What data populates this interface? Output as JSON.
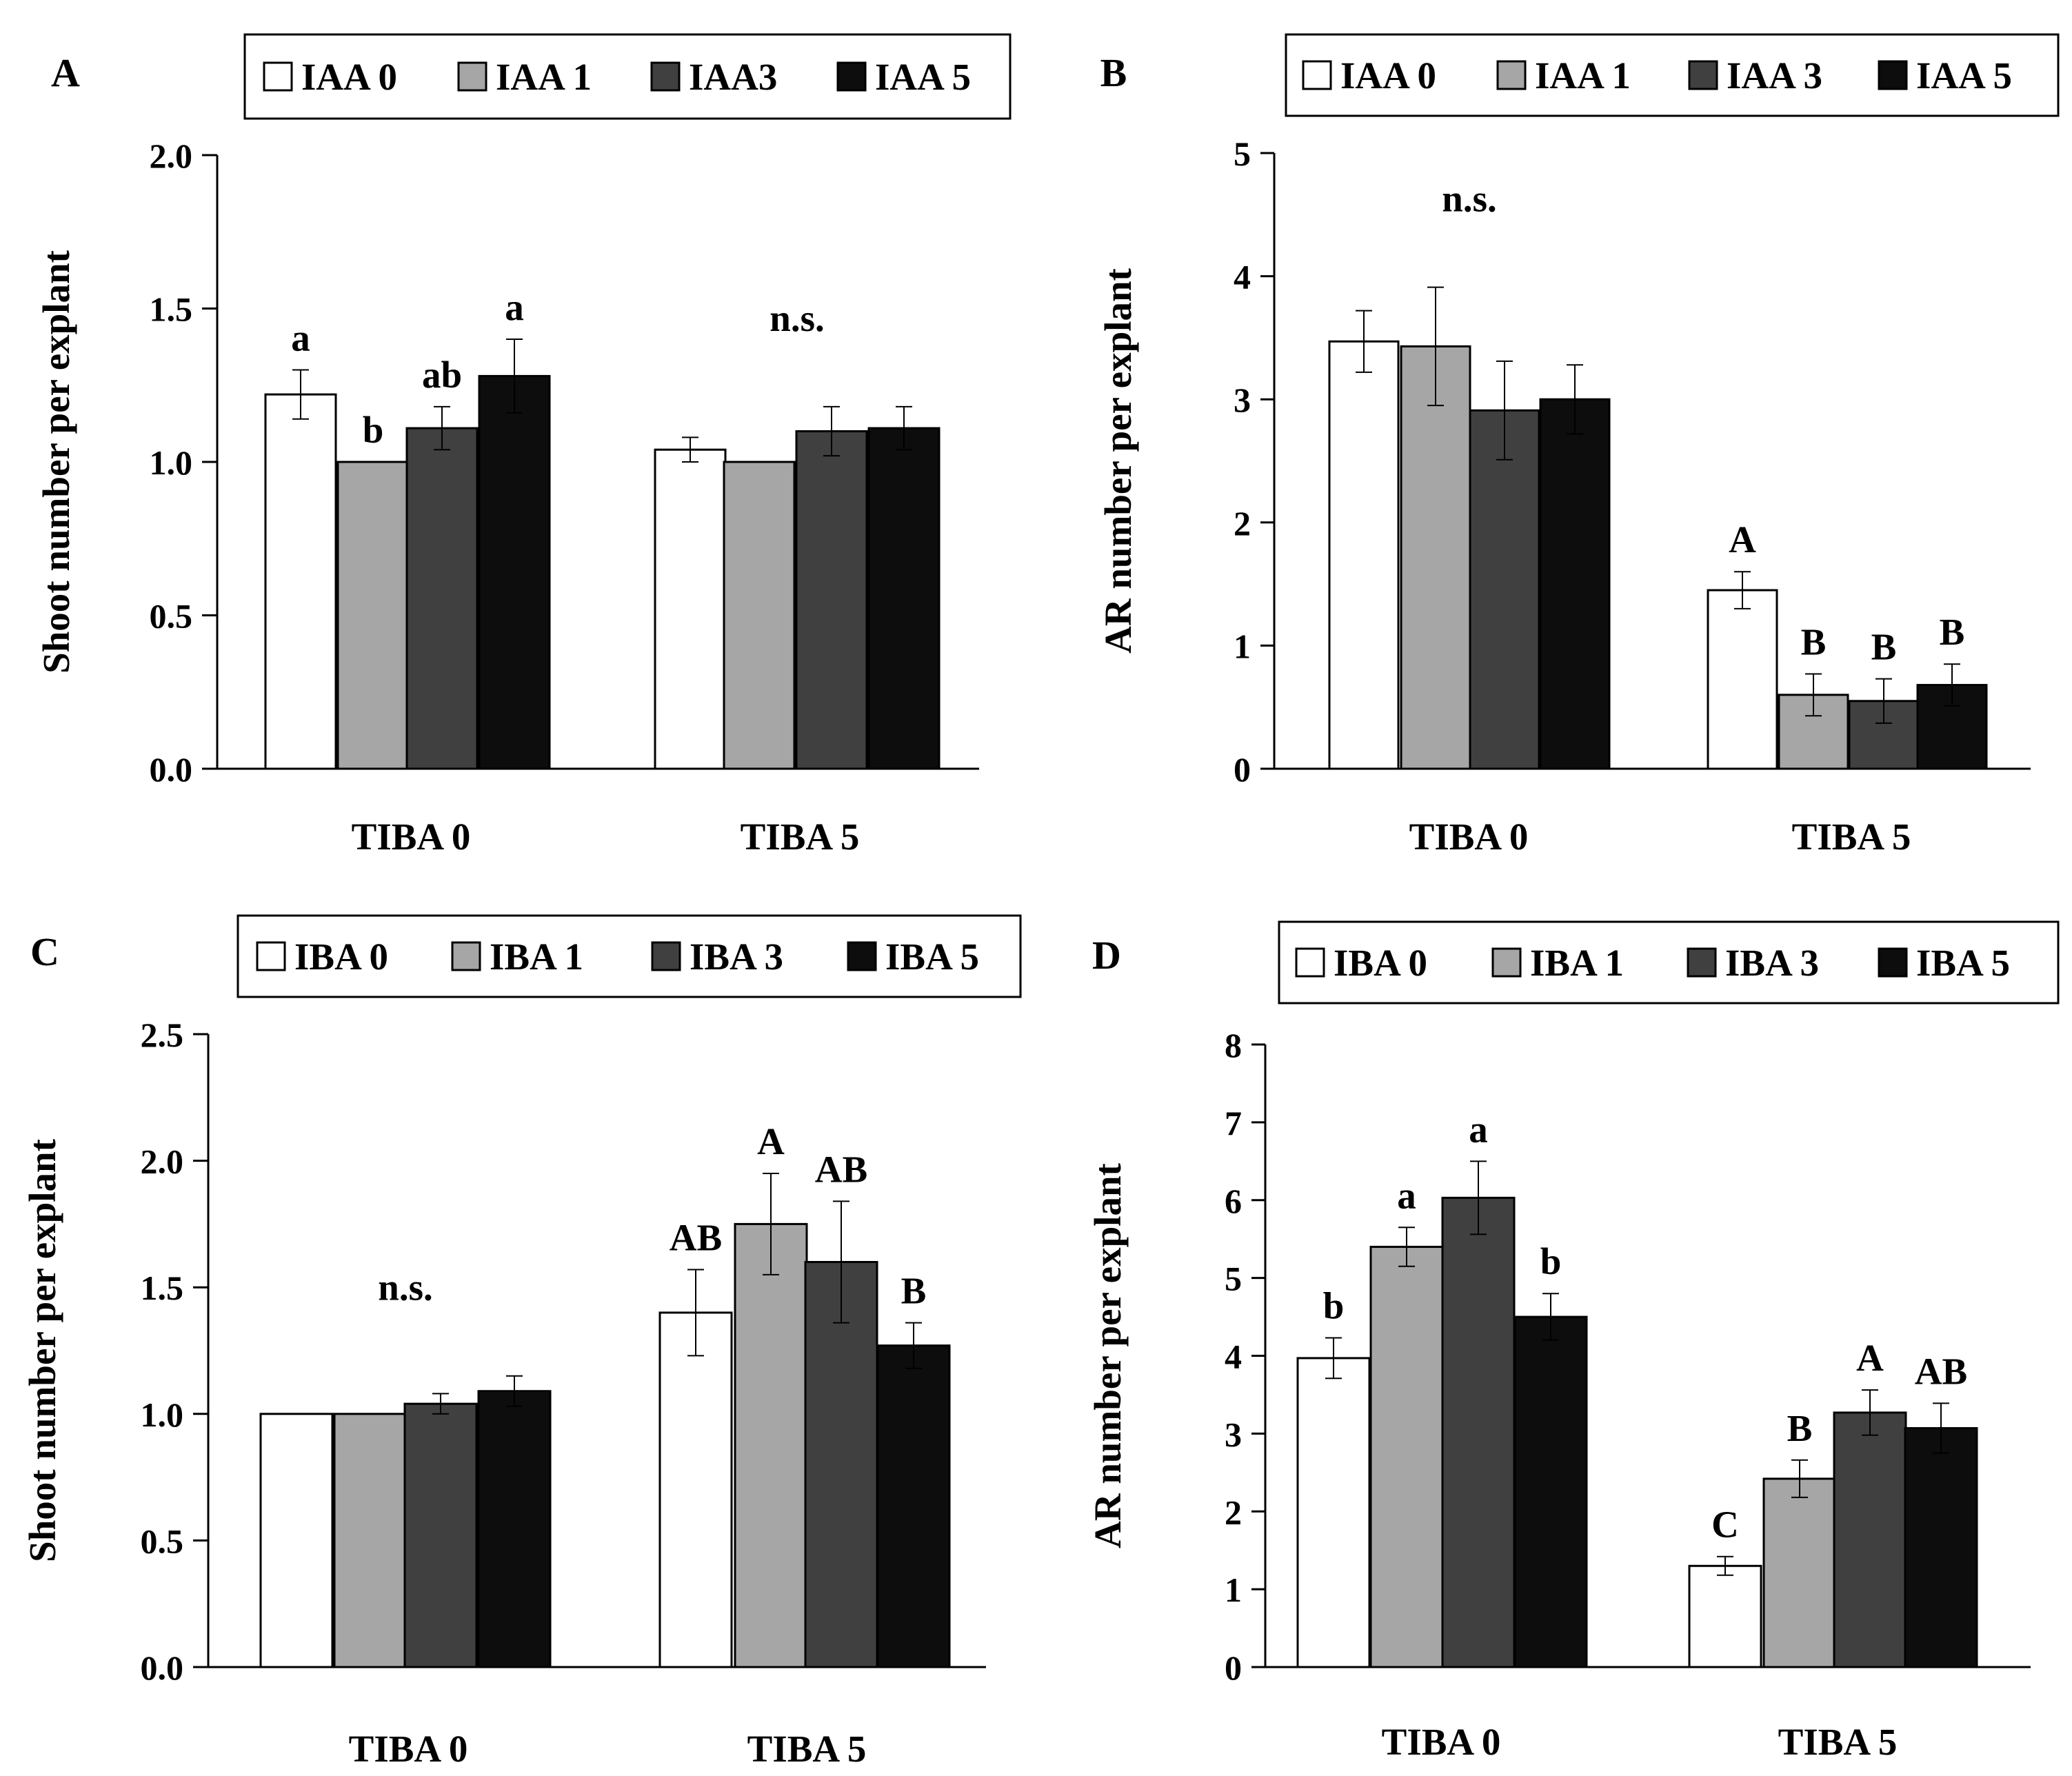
{
  "figure": {
    "colors": {
      "s0": "#ffffff",
      "s1": "#a6a6a6",
      "s2": "#404040",
      "s3": "#0d0d0d",
      "stroke": "#000000"
    }
  },
  "chart_data": [
    {
      "panel": "A",
      "type": "bar",
      "categories": [
        "TIBA 0",
        "TIBA 5"
      ],
      "series": [
        {
          "name": "IAA 0",
          "values": [
            1.22,
            1.04
          ],
          "errors": [
            0.08,
            0.04
          ]
        },
        {
          "name": "IAA 1",
          "values": [
            1.0,
            1.0
          ],
          "errors": [
            0,
            0
          ]
        },
        {
          "name": "IAA3",
          "values": [
            1.11,
            1.1
          ],
          "errors": [
            0.07,
            0.08
          ]
        },
        {
          "name": "IAA 5",
          "values": [
            1.28,
            1.11
          ],
          "errors": [
            0.12,
            0.07
          ]
        }
      ],
      "annotations": [
        [
          "a",
          "b",
          "ab",
          "a"
        ],
        [
          "n.s."
        ]
      ],
      "ylabel": "Shoot number per explant",
      "ylim": [
        0,
        2.0
      ],
      "yticks": [
        "0.0",
        "0.5",
        "1.0",
        "1.5",
        "2.0"
      ],
      "legend_position": "top"
    },
    {
      "panel": "B",
      "type": "bar",
      "categories": [
        "TIBA 0",
        "TIBA 5"
      ],
      "series": [
        {
          "name": "IAA 0",
          "values": [
            3.47,
            1.45
          ],
          "errors": [
            0.25,
            0.15
          ]
        },
        {
          "name": "IAA 1",
          "values": [
            3.43,
            0.6
          ],
          "errors": [
            0.48,
            0.17
          ]
        },
        {
          "name": "IAA 3",
          "values": [
            2.91,
            0.55
          ],
          "errors": [
            0.4,
            0.18
          ]
        },
        {
          "name": "IAA 5",
          "values": [
            3.0,
            0.68
          ],
          "errors": [
            0.28,
            0.17
          ]
        }
      ],
      "annotations": [
        [
          "n.s."
        ],
        [
          "A",
          "B",
          "B",
          "B"
        ]
      ],
      "ylabel": "AR number per explant",
      "ylim": [
        0,
        5
      ],
      "yticks": [
        "0",
        "1",
        "2",
        "3",
        "4",
        "5"
      ],
      "legend_position": "top"
    },
    {
      "panel": "C",
      "type": "bar",
      "categories": [
        "TIBA 0",
        "TIBA 5"
      ],
      "series": [
        {
          "name": "IBA 0",
          "values": [
            1.0,
            1.4
          ],
          "errors": [
            0,
            0.17
          ]
        },
        {
          "name": "IBA 1",
          "values": [
            1.0,
            1.75
          ],
          "errors": [
            0,
            0.2
          ]
        },
        {
          "name": "IBA 3",
          "values": [
            1.04,
            1.6
          ],
          "errors": [
            0.04,
            0.24
          ]
        },
        {
          "name": "IBA 5",
          "values": [
            1.09,
            1.27
          ],
          "errors": [
            0.06,
            0.09
          ]
        }
      ],
      "annotations": [
        [
          "n.s."
        ],
        [
          "AB",
          "A",
          "AB",
          "B"
        ]
      ],
      "ylabel": "Shoot number per explant",
      "ylim": [
        0,
        2.5
      ],
      "yticks": [
        "0.0",
        "0.5",
        "1.0",
        "1.5",
        "2.0",
        "2.5"
      ],
      "legend_position": "top"
    },
    {
      "panel": "D",
      "type": "bar",
      "categories": [
        "TIBA 0",
        "TIBA 5"
      ],
      "series": [
        {
          "name": "IBA 0",
          "values": [
            3.97,
            1.3
          ],
          "errors": [
            0.26,
            0.12
          ]
        },
        {
          "name": "IBA 1",
          "values": [
            5.4,
            2.42
          ],
          "errors": [
            0.25,
            0.24
          ]
        },
        {
          "name": "IBA 3",
          "values": [
            6.03,
            3.27
          ],
          "errors": [
            0.47,
            0.29
          ]
        },
        {
          "name": "IBA 5",
          "values": [
            4.5,
            3.07
          ],
          "errors": [
            0.3,
            0.32
          ]
        }
      ],
      "annotations": [
        [
          "b",
          "a",
          "a",
          "b"
        ],
        [
          "C",
          "B",
          "A",
          "AB"
        ]
      ],
      "ylabel": "AR number per explant",
      "ylim": [
        0,
        8
      ],
      "yticks": [
        "0",
        "1",
        "2",
        "3",
        "4",
        "5",
        "6",
        "7",
        "8"
      ],
      "legend_position": "top"
    }
  ]
}
